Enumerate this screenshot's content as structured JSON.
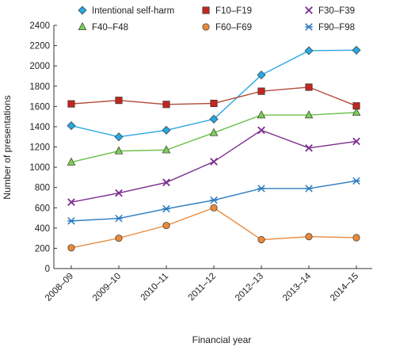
{
  "chart_data": {
    "type": "line",
    "title": "",
    "xlabel": "Financial year",
    "ylabel": "Number of presentations",
    "categories": [
      "2008–09",
      "2009–10",
      "2010–11",
      "2011–12",
      "2012–13",
      "2013–14",
      "2014–15"
    ],
    "ylim": [
      0,
      2400
    ],
    "yticks": [
      0,
      200,
      400,
      600,
      800,
      1000,
      1200,
      1400,
      1600,
      1800,
      2000,
      2200,
      2400
    ],
    "grid": false,
    "legend_position": "top",
    "series": [
      {
        "name": "Intentional self-harm",
        "marker": "diamond",
        "color": "#29a8e0",
        "marker_fill": "#29a8e0",
        "values": [
          1410,
          1300,
          1365,
          1475,
          1910,
          2150,
          2155
        ]
      },
      {
        "name": "F10–F19",
        "marker": "square",
        "color": "#b24a3a",
        "marker_fill": "#c4261d",
        "values": [
          1625,
          1660,
          1620,
          1630,
          1750,
          1790,
          1605
        ]
      },
      {
        "name": "F30–F39",
        "marker": "x",
        "color": "#7b2d8e",
        "marker_fill": "#7b2d8e",
        "values": [
          655,
          745,
          850,
          1055,
          1365,
          1190,
          1255
        ]
      },
      {
        "name": "F40–F48",
        "marker": "triangle",
        "color": "#6cc04a",
        "marker_fill": "#7ccf52",
        "values": [
          1050,
          1160,
          1170,
          1340,
          1515,
          1515,
          1540
        ]
      },
      {
        "name": "F60–F69",
        "marker": "circle",
        "color": "#e88a3a",
        "marker_fill": "#e88a3a",
        "values": [
          205,
          300,
          425,
          600,
          285,
          315,
          305
        ]
      },
      {
        "name": "F90–F98",
        "marker": "asterisk",
        "color": "#2a7bbf",
        "marker_fill": "#2a7bbf",
        "values": [
          470,
          495,
          590,
          675,
          790,
          790,
          865
        ]
      }
    ]
  }
}
